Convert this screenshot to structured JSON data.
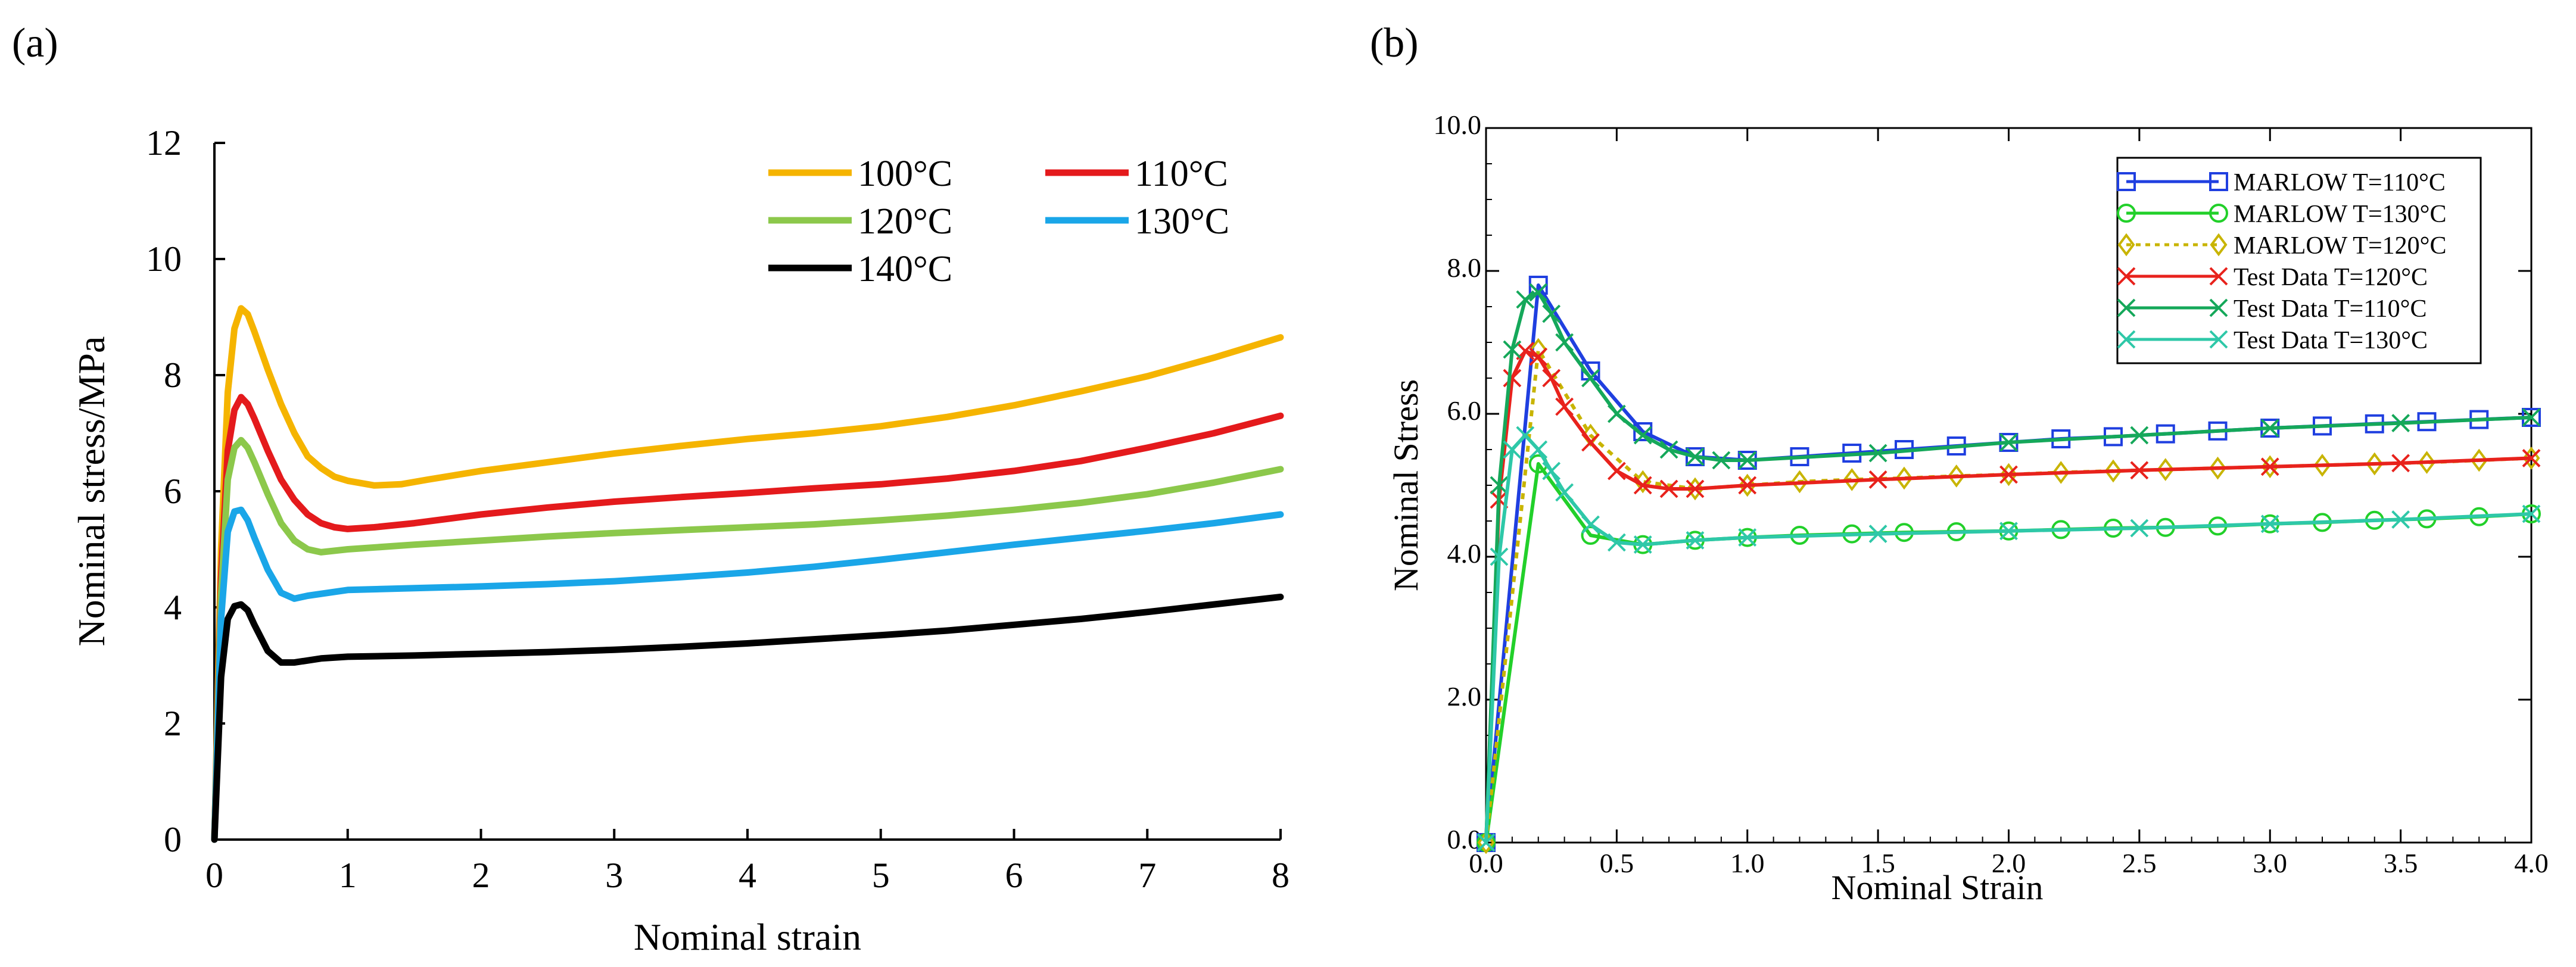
{
  "panels": {
    "a_label": "(a)",
    "b_label": "(b)"
  },
  "chart_data": [
    {
      "type": "line",
      "panel": "(a)",
      "title": "",
      "xlabel": "Nominal strain",
      "ylabel": "Nominal stress/MPa",
      "xlim": [
        0,
        8
      ],
      "ylim": [
        0,
        12
      ],
      "xticks": [
        0,
        1,
        2,
        3,
        4,
        5,
        6,
        7,
        8
      ],
      "yticks": [
        0,
        2,
        4,
        6,
        8,
        10,
        12
      ],
      "legend_position": "top-right",
      "series": [
        {
          "name": "100°C",
          "color": "#f5b400",
          "x": [
            0,
            0.05,
            0.1,
            0.15,
            0.2,
            0.25,
            0.3,
            0.4,
            0.5,
            0.6,
            0.7,
            0.8,
            0.9,
            1.0,
            1.2,
            1.4,
            1.6,
            2,
            2.5,
            3,
            3.5,
            4,
            4.5,
            5,
            5.5,
            6,
            6.5,
            7,
            7.5,
            8
          ],
          "y": [
            0,
            5.0,
            7.7,
            8.8,
            9.15,
            9.05,
            8.75,
            8.1,
            7.5,
            7.0,
            6.6,
            6.4,
            6.25,
            6.18,
            6.1,
            6.12,
            6.2,
            6.35,
            6.5,
            6.65,
            6.78,
            6.9,
            7.0,
            7.12,
            7.28,
            7.48,
            7.72,
            7.98,
            8.3,
            8.65
          ]
        },
        {
          "name": "110°C",
          "color": "#e41a1c",
          "x": [
            0,
            0.05,
            0.1,
            0.15,
            0.2,
            0.25,
            0.3,
            0.4,
            0.5,
            0.6,
            0.7,
            0.8,
            0.9,
            1.0,
            1.2,
            1.5,
            2,
            2.5,
            3,
            3.5,
            4,
            4.5,
            5,
            5.5,
            6,
            6.5,
            7,
            7.5,
            8
          ],
          "y": [
            0,
            4.5,
            6.7,
            7.4,
            7.62,
            7.5,
            7.25,
            6.7,
            6.2,
            5.85,
            5.6,
            5.45,
            5.38,
            5.35,
            5.38,
            5.45,
            5.6,
            5.72,
            5.82,
            5.9,
            5.97,
            6.05,
            6.12,
            6.22,
            6.35,
            6.52,
            6.75,
            7.0,
            7.3
          ]
        },
        {
          "name": "120°C",
          "color": "#8cc84b",
          "x": [
            0,
            0.05,
            0.1,
            0.15,
            0.2,
            0.25,
            0.3,
            0.4,
            0.5,
            0.6,
            0.7,
            0.8,
            1.0,
            1.5,
            2,
            2.5,
            3,
            3.5,
            4,
            4.5,
            5,
            5.5,
            6,
            6.5,
            7,
            7.5,
            8
          ],
          "y": [
            0,
            4.2,
            6.2,
            6.75,
            6.88,
            6.75,
            6.5,
            5.95,
            5.45,
            5.15,
            5.0,
            4.95,
            5.0,
            5.08,
            5.15,
            5.22,
            5.28,
            5.33,
            5.38,
            5.43,
            5.5,
            5.58,
            5.68,
            5.8,
            5.95,
            6.15,
            6.38
          ]
        },
        {
          "name": "130°C",
          "color": "#1aa6e8",
          "x": [
            0,
            0.05,
            0.1,
            0.15,
            0.2,
            0.25,
            0.3,
            0.4,
            0.5,
            0.6,
            0.7,
            1.0,
            1.5,
            2,
            2.5,
            3,
            3.5,
            4,
            4.5,
            5,
            5.5,
            6,
            6.5,
            7,
            7.5,
            8
          ],
          "y": [
            0,
            3.8,
            5.3,
            5.65,
            5.68,
            5.5,
            5.2,
            4.65,
            4.25,
            4.15,
            4.2,
            4.3,
            4.33,
            4.36,
            4.4,
            4.45,
            4.52,
            4.6,
            4.7,
            4.82,
            4.95,
            5.08,
            5.2,
            5.32,
            5.45,
            5.6
          ]
        },
        {
          "name": "140°C",
          "color": "#000000",
          "x": [
            0,
            0.05,
            0.1,
            0.15,
            0.2,
            0.25,
            0.3,
            0.4,
            0.5,
            0.6,
            0.8,
            1.0,
            1.5,
            2,
            2.5,
            3,
            3.5,
            4,
            4.5,
            5,
            5.5,
            6,
            6.5,
            7,
            7.5,
            8
          ],
          "y": [
            0,
            2.8,
            3.8,
            4.02,
            4.05,
            3.95,
            3.7,
            3.25,
            3.05,
            3.05,
            3.12,
            3.15,
            3.17,
            3.2,
            3.23,
            3.27,
            3.32,
            3.38,
            3.45,
            3.52,
            3.6,
            3.7,
            3.8,
            3.92,
            4.05,
            4.18
          ]
        }
      ]
    },
    {
      "type": "line",
      "panel": "(b)",
      "title": "",
      "xlabel": "Nominal Strain",
      "ylabel": "Nominal Stress",
      "xlim": [
        0,
        4
      ],
      "ylim": [
        0,
        10
      ],
      "xticks": [
        "0.0",
        "0.5",
        "1.0",
        "1.5",
        "2.0",
        "2.5",
        "3.0",
        "3.5",
        "4.0"
      ],
      "yticks": [
        "0.0",
        "2.0",
        "4.0",
        "6.0",
        "8.0",
        "10.0"
      ],
      "legend_position": "top-right",
      "series": [
        {
          "name": "MARLOW T=110°C",
          "color": "#1f3fe0",
          "marker": "square",
          "dash": "solid",
          "x": [
            0,
            0.2,
            0.4,
            0.6,
            0.8,
            1.0,
            1.2,
            1.4,
            1.6,
            1.8,
            2.0,
            2.2,
            2.4,
            2.6,
            2.8,
            3.0,
            3.2,
            3.4,
            3.6,
            3.8,
            4.0
          ],
          "y": [
            0,
            7.8,
            6.6,
            5.75,
            5.4,
            5.35,
            5.4,
            5.45,
            5.5,
            5.55,
            5.6,
            5.65,
            5.68,
            5.72,
            5.76,
            5.8,
            5.83,
            5.86,
            5.89,
            5.92,
            5.95
          ]
        },
        {
          "name": "MARLOW T=130°C",
          "color": "#22d02a",
          "marker": "circle",
          "dash": "solid",
          "x": [
            0,
            0.2,
            0.4,
            0.6,
            0.8,
            1.0,
            1.2,
            1.4,
            1.6,
            1.8,
            2.0,
            2.2,
            2.4,
            2.6,
            2.8,
            3.0,
            3.2,
            3.4,
            3.6,
            3.8,
            4.0
          ],
          "y": [
            0,
            5.3,
            4.3,
            4.17,
            4.23,
            4.27,
            4.3,
            4.32,
            4.34,
            4.35,
            4.36,
            4.38,
            4.4,
            4.41,
            4.43,
            4.46,
            4.48,
            4.51,
            4.53,
            4.56,
            4.6
          ]
        },
        {
          "name": "MARLOW T=120°C",
          "color": "#c8b400",
          "marker": "diamond",
          "dash": "dotted",
          "x": [
            0,
            0.2,
            0.4,
            0.6,
            0.8,
            1.0,
            1.2,
            1.4,
            1.6,
            1.8,
            2.0,
            2.2,
            2.4,
            2.6,
            2.8,
            3.0,
            3.2,
            3.4,
            3.6,
            3.8,
            4.0
          ],
          "y": [
            0,
            6.9,
            5.7,
            5.05,
            4.95,
            5.0,
            5.05,
            5.08,
            5.1,
            5.13,
            5.15,
            5.18,
            5.2,
            5.22,
            5.24,
            5.26,
            5.28,
            5.3,
            5.32,
            5.35,
            5.38
          ]
        },
        {
          "name": "Test Data T=120°C",
          "color": "#e8221c",
          "marker": "x",
          "dash": "solid",
          "x": [
            0,
            0.05,
            0.1,
            0.15,
            0.2,
            0.25,
            0.3,
            0.4,
            0.5,
            0.6,
            0.7,
            0.8,
            1.0,
            1.5,
            2.0,
            2.5,
            3.0,
            3.5,
            4.0
          ],
          "y": [
            0,
            4.8,
            6.5,
            6.88,
            6.8,
            6.5,
            6.1,
            5.6,
            5.2,
            5.0,
            4.95,
            4.95,
            5.0,
            5.08,
            5.15,
            5.21,
            5.26,
            5.31,
            5.38
          ]
        },
        {
          "name": "Test Data T=110°C",
          "color": "#15a85a",
          "marker": "x",
          "dash": "solid",
          "x": [
            0,
            0.05,
            0.1,
            0.15,
            0.2,
            0.25,
            0.3,
            0.4,
            0.5,
            0.6,
            0.7,
            0.8,
            0.9,
            1.0,
            1.5,
            2.0,
            2.5,
            3.0,
            3.5,
            4.0
          ],
          "y": [
            0,
            5.0,
            6.9,
            7.6,
            7.7,
            7.4,
            7.0,
            6.5,
            6.0,
            5.7,
            5.5,
            5.4,
            5.35,
            5.35,
            5.45,
            5.6,
            5.7,
            5.8,
            5.87,
            5.95
          ]
        },
        {
          "name": "Test Data T=130°C",
          "color": "#2ec8a8",
          "marker": "x",
          "dash": "solid",
          "x": [
            0,
            0.05,
            0.1,
            0.15,
            0.2,
            0.25,
            0.3,
            0.4,
            0.5,
            0.6,
            0.8,
            1.0,
            1.5,
            2.0,
            2.5,
            3.0,
            3.5,
            4.0
          ],
          "y": [
            0,
            4.0,
            5.5,
            5.7,
            5.5,
            5.2,
            4.9,
            4.45,
            4.2,
            4.17,
            4.23,
            4.27,
            4.32,
            4.36,
            4.4,
            4.46,
            4.52,
            4.6
          ]
        }
      ]
    }
  ]
}
